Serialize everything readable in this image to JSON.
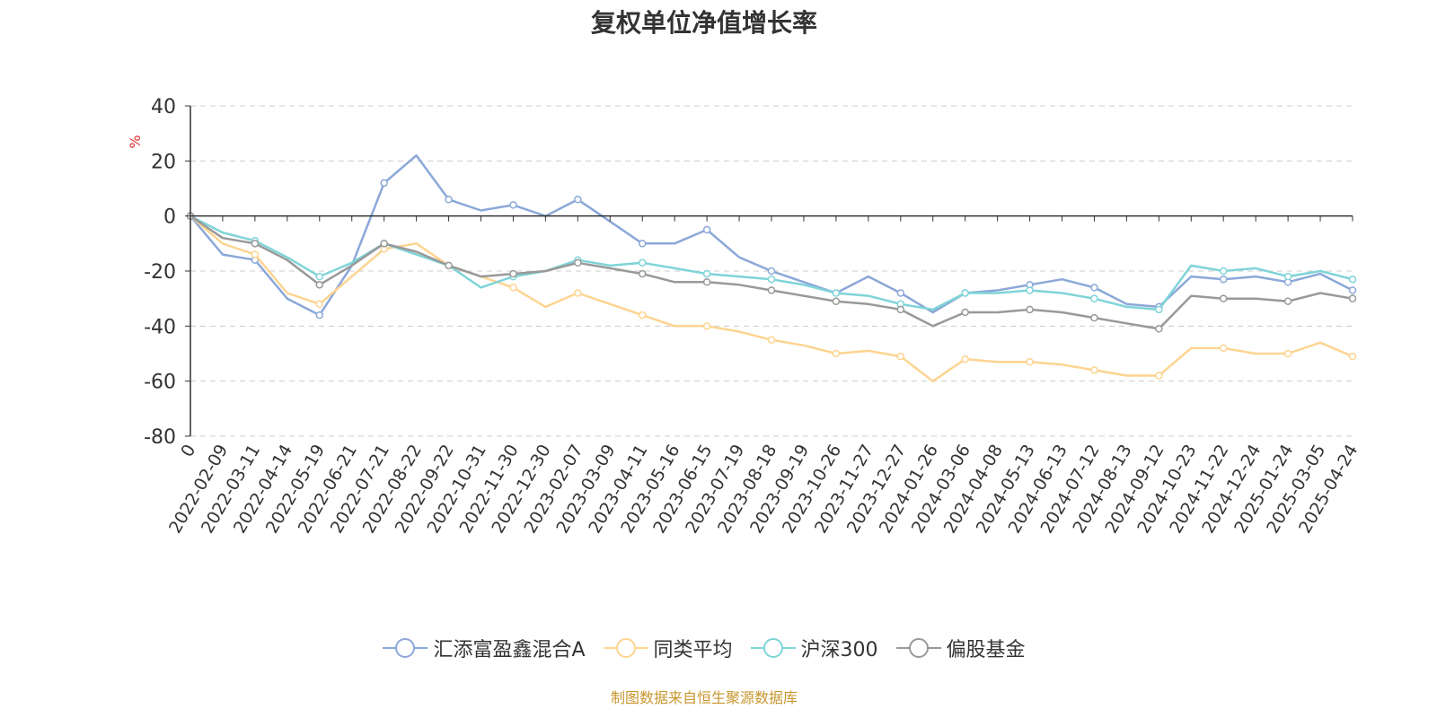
{
  "title": "复权单位净值增长率",
  "source": "制图数据来自恒生聚源数据库",
  "colors": {
    "axis": "#333333",
    "grid": "#cccccc",
    "unit": "#e03030",
    "title": "#333333",
    "source": "#c8962e"
  },
  "chart_data": {
    "type": "line",
    "title": "复权单位净值增长率",
    "ylabel": "%",
    "ylim": [
      -80,
      40
    ],
    "yticks": [
      40,
      20,
      0,
      -20,
      -40,
      -60,
      -80
    ],
    "grid": true,
    "legend_position": "bottom",
    "x_ticks": [
      "0",
      "2022-02-09",
      "2022-03-11",
      "2022-04-14",
      "2022-05-19",
      "2022-06-21",
      "2022-07-21",
      "2022-08-22",
      "2022-09-22",
      "2022-10-31",
      "2022-11-30",
      "2022-12-30",
      "2023-02-07",
      "2023-03-09",
      "2023-04-11",
      "2023-05-16",
      "2023-06-15",
      "2023-07-19",
      "2023-08-18",
      "2023-09-19",
      "2023-10-26",
      "2023-11-27",
      "2023-12-27",
      "2024-01-26",
      "2024-03-06",
      "2024-04-08",
      "2024-05-13",
      "2024-06-13",
      "2024-07-12",
      "2024-08-13",
      "2024-09-12",
      "2024-10-23",
      "2024-11-22",
      "2024-12-24",
      "2025-01-24",
      "2025-03-05",
      "2025-04-24"
    ],
    "series": [
      {
        "name": "汇添富盈鑫混合A",
        "color": "#8ba8d8",
        "values": [
          0,
          -14,
          -16,
          -30,
          -36,
          -18,
          12,
          22,
          6,
          2,
          4,
          0,
          6,
          -2,
          -10,
          -10,
          -5,
          -15,
          -20,
          -24,
          -28,
          -22,
          -28,
          -35,
          -28,
          -27,
          -25,
          -23,
          -26,
          -32,
          -33,
          -22,
          -23,
          -22,
          -24,
          -21,
          -27
        ]
      },
      {
        "name": "同类平均",
        "color": "#fdd491",
        "values": [
          0,
          -10,
          -14,
          -28,
          -32,
          -22,
          -12,
          -10,
          -18,
          -22,
          -26,
          -33,
          -28,
          -32,
          -36,
          -40,
          -40,
          -42,
          -45,
          -47,
          -50,
          -49,
          -51,
          -60,
          -52,
          -53,
          -53,
          -54,
          -56,
          -58,
          -58,
          -48,
          -48,
          -50,
          -50,
          -46,
          -51
        ]
      },
      {
        "name": "沪深300",
        "color": "#7fd4d8",
        "values": [
          0,
          -6,
          -9,
          -15,
          -22,
          -17,
          -10,
          -14,
          -18,
          -26,
          -22,
          -20,
          -16,
          -18,
          -17,
          -19,
          -21,
          -22,
          -23,
          -25,
          -28,
          -29,
          -32,
          -34,
          -28,
          -28,
          -27,
          -28,
          -30,
          -33,
          -34,
          -18,
          -20,
          -19,
          -22,
          -20,
          -23
        ]
      },
      {
        "name": "偏股基金",
        "color": "#999999",
        "values": [
          0,
          -8,
          -10,
          -16,
          -25,
          -18,
          -10,
          -13,
          -18,
          -22,
          -21,
          -20,
          -17,
          -19,
          -21,
          -24,
          -24,
          -25,
          -27,
          -29,
          -31,
          -32,
          -34,
          -40,
          -35,
          -35,
          -34,
          -35,
          -37,
          -39,
          -41,
          -29,
          -30,
          -30,
          -31,
          -28,
          -30
        ]
      }
    ]
  }
}
